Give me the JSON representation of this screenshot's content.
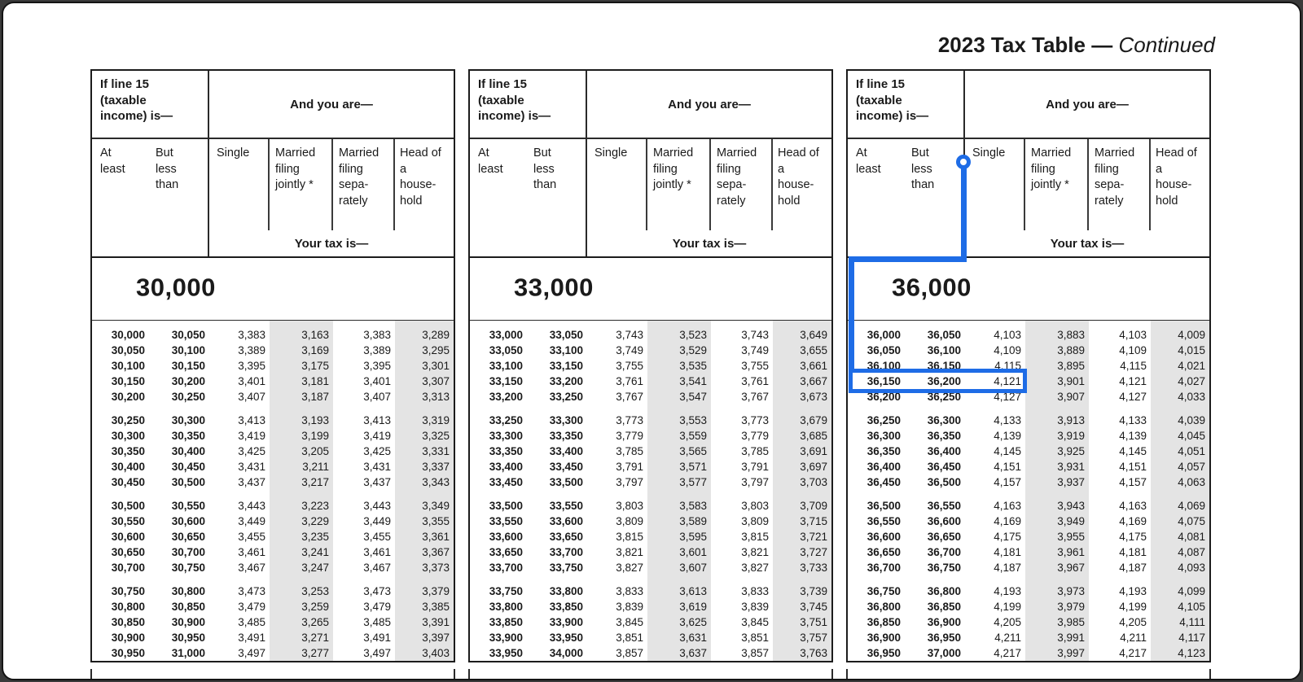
{
  "title": {
    "main": "2023 Tax Table",
    "dash": "—",
    "continued": "Continued"
  },
  "header": {
    "income_label": "If line 15\n(taxable\nincome) is—",
    "and_you_are": "And you are—",
    "col_at_least": "At\nleast",
    "col_but_less_than": "But\nless\nthan",
    "filing_columns": [
      "Single",
      "Married\nfiling\njointly *",
      "Married\nfiling\nsepa-\nrately",
      "Head of\na\nhouse-\nhold"
    ],
    "your_tax_is": "Your tax is—"
  },
  "callout": {
    "color": "#1e6ce6",
    "anchored_column": "Single",
    "highlighted_row": {
      "at_least": "36,150",
      "but_less_than": "36,200",
      "single_tax": "4,121"
    }
  },
  "colors": {
    "stripe": "#e4e4e4",
    "border": "#1c1c1c",
    "background": "#ffffff"
  },
  "panels": [
    {
      "section": "30,000",
      "groups": [
        [
          [
            "30,000",
            "30,050",
            "3,383",
            "3,163",
            "3,383",
            "3,289"
          ],
          [
            "30,050",
            "30,100",
            "3,389",
            "3,169",
            "3,389",
            "3,295"
          ],
          [
            "30,100",
            "30,150",
            "3,395",
            "3,175",
            "3,395",
            "3,301"
          ],
          [
            "30,150",
            "30,200",
            "3,401",
            "3,181",
            "3,401",
            "3,307"
          ],
          [
            "30,200",
            "30,250",
            "3,407",
            "3,187",
            "3,407",
            "3,313"
          ]
        ],
        [
          [
            "30,250",
            "30,300",
            "3,413",
            "3,193",
            "3,413",
            "3,319"
          ],
          [
            "30,300",
            "30,350",
            "3,419",
            "3,199",
            "3,419",
            "3,325"
          ],
          [
            "30,350",
            "30,400",
            "3,425",
            "3,205",
            "3,425",
            "3,331"
          ],
          [
            "30,400",
            "30,450",
            "3,431",
            "3,211",
            "3,431",
            "3,337"
          ],
          [
            "30,450",
            "30,500",
            "3,437",
            "3,217",
            "3,437",
            "3,343"
          ]
        ],
        [
          [
            "30,500",
            "30,550",
            "3,443",
            "3,223",
            "3,443",
            "3,349"
          ],
          [
            "30,550",
            "30,600",
            "3,449",
            "3,229",
            "3,449",
            "3,355"
          ],
          [
            "30,600",
            "30,650",
            "3,455",
            "3,235",
            "3,455",
            "3,361"
          ],
          [
            "30,650",
            "30,700",
            "3,461",
            "3,241",
            "3,461",
            "3,367"
          ],
          [
            "30,700",
            "30,750",
            "3,467",
            "3,247",
            "3,467",
            "3,373"
          ]
        ],
        [
          [
            "30,750",
            "30,800",
            "3,473",
            "3,253",
            "3,473",
            "3,379"
          ],
          [
            "30,800",
            "30,850",
            "3,479",
            "3,259",
            "3,479",
            "3,385"
          ],
          [
            "30,850",
            "30,900",
            "3,485",
            "3,265",
            "3,485",
            "3,391"
          ],
          [
            "30,900",
            "30,950",
            "3,491",
            "3,271",
            "3,491",
            "3,397"
          ],
          [
            "30,950",
            "31,000",
            "3,497",
            "3,277",
            "3,497",
            "3,403"
          ]
        ]
      ]
    },
    {
      "section": "33,000",
      "groups": [
        [
          [
            "33,000",
            "33,050",
            "3,743",
            "3,523",
            "3,743",
            "3,649"
          ],
          [
            "33,050",
            "33,100",
            "3,749",
            "3,529",
            "3,749",
            "3,655"
          ],
          [
            "33,100",
            "33,150",
            "3,755",
            "3,535",
            "3,755",
            "3,661"
          ],
          [
            "33,150",
            "33,200",
            "3,761",
            "3,541",
            "3,761",
            "3,667"
          ],
          [
            "33,200",
            "33,250",
            "3,767",
            "3,547",
            "3,767",
            "3,673"
          ]
        ],
        [
          [
            "33,250",
            "33,300",
            "3,773",
            "3,553",
            "3,773",
            "3,679"
          ],
          [
            "33,300",
            "33,350",
            "3,779",
            "3,559",
            "3,779",
            "3,685"
          ],
          [
            "33,350",
            "33,400",
            "3,785",
            "3,565",
            "3,785",
            "3,691"
          ],
          [
            "33,400",
            "33,450",
            "3,791",
            "3,571",
            "3,791",
            "3,697"
          ],
          [
            "33,450",
            "33,500",
            "3,797",
            "3,577",
            "3,797",
            "3,703"
          ]
        ],
        [
          [
            "33,500",
            "33,550",
            "3,803",
            "3,583",
            "3,803",
            "3,709"
          ],
          [
            "33,550",
            "33,600",
            "3,809",
            "3,589",
            "3,809",
            "3,715"
          ],
          [
            "33,600",
            "33,650",
            "3,815",
            "3,595",
            "3,815",
            "3,721"
          ],
          [
            "33,650",
            "33,700",
            "3,821",
            "3,601",
            "3,821",
            "3,727"
          ],
          [
            "33,700",
            "33,750",
            "3,827",
            "3,607",
            "3,827",
            "3,733"
          ]
        ],
        [
          [
            "33,750",
            "33,800",
            "3,833",
            "3,613",
            "3,833",
            "3,739"
          ],
          [
            "33,800",
            "33,850",
            "3,839",
            "3,619",
            "3,839",
            "3,745"
          ],
          [
            "33,850",
            "33,900",
            "3,845",
            "3,625",
            "3,845",
            "3,751"
          ],
          [
            "33,900",
            "33,950",
            "3,851",
            "3,631",
            "3,851",
            "3,757"
          ],
          [
            "33,950",
            "34,000",
            "3,857",
            "3,637",
            "3,857",
            "3,763"
          ]
        ]
      ]
    },
    {
      "section": "36,000",
      "groups": [
        [
          [
            "36,000",
            "36,050",
            "4,103",
            "3,883",
            "4,103",
            "4,009"
          ],
          [
            "36,050",
            "36,100",
            "4,109",
            "3,889",
            "4,109",
            "4,015"
          ],
          [
            "36,100",
            "36,150",
            "4,115",
            "3,895",
            "4,115",
            "4,021"
          ],
          [
            "36,150",
            "36,200",
            "4,121",
            "3,901",
            "4,121",
            "4,027"
          ],
          [
            "36,200",
            "36,250",
            "4,127",
            "3,907",
            "4,127",
            "4,033"
          ]
        ],
        [
          [
            "36,250",
            "36,300",
            "4,133",
            "3,913",
            "4,133",
            "4,039"
          ],
          [
            "36,300",
            "36,350",
            "4,139",
            "3,919",
            "4,139",
            "4,045"
          ],
          [
            "36,350",
            "36,400",
            "4,145",
            "3,925",
            "4,145",
            "4,051"
          ],
          [
            "36,400",
            "36,450",
            "4,151",
            "3,931",
            "4,151",
            "4,057"
          ],
          [
            "36,450",
            "36,500",
            "4,157",
            "3,937",
            "4,157",
            "4,063"
          ]
        ],
        [
          [
            "36,500",
            "36,550",
            "4,163",
            "3,943",
            "4,163",
            "4,069"
          ],
          [
            "36,550",
            "36,600",
            "4,169",
            "3,949",
            "4,169",
            "4,075"
          ],
          [
            "36,600",
            "36,650",
            "4,175",
            "3,955",
            "4,175",
            "4,081"
          ],
          [
            "36,650",
            "36,700",
            "4,181",
            "3,961",
            "4,181",
            "4,087"
          ],
          [
            "36,700",
            "36,750",
            "4,187",
            "3,967",
            "4,187",
            "4,093"
          ]
        ],
        [
          [
            "36,750",
            "36,800",
            "4,193",
            "3,973",
            "4,193",
            "4,099"
          ],
          [
            "36,800",
            "36,850",
            "4,199",
            "3,979",
            "4,199",
            "4,105"
          ],
          [
            "36,850",
            "36,900",
            "4,205",
            "3,985",
            "4,205",
            "4,111"
          ],
          [
            "36,900",
            "36,950",
            "4,211",
            "3,991",
            "4,211",
            "4,117"
          ],
          [
            "36,950",
            "37,000",
            "4,217",
            "3,997",
            "4,217",
            "4,123"
          ]
        ]
      ]
    }
  ]
}
